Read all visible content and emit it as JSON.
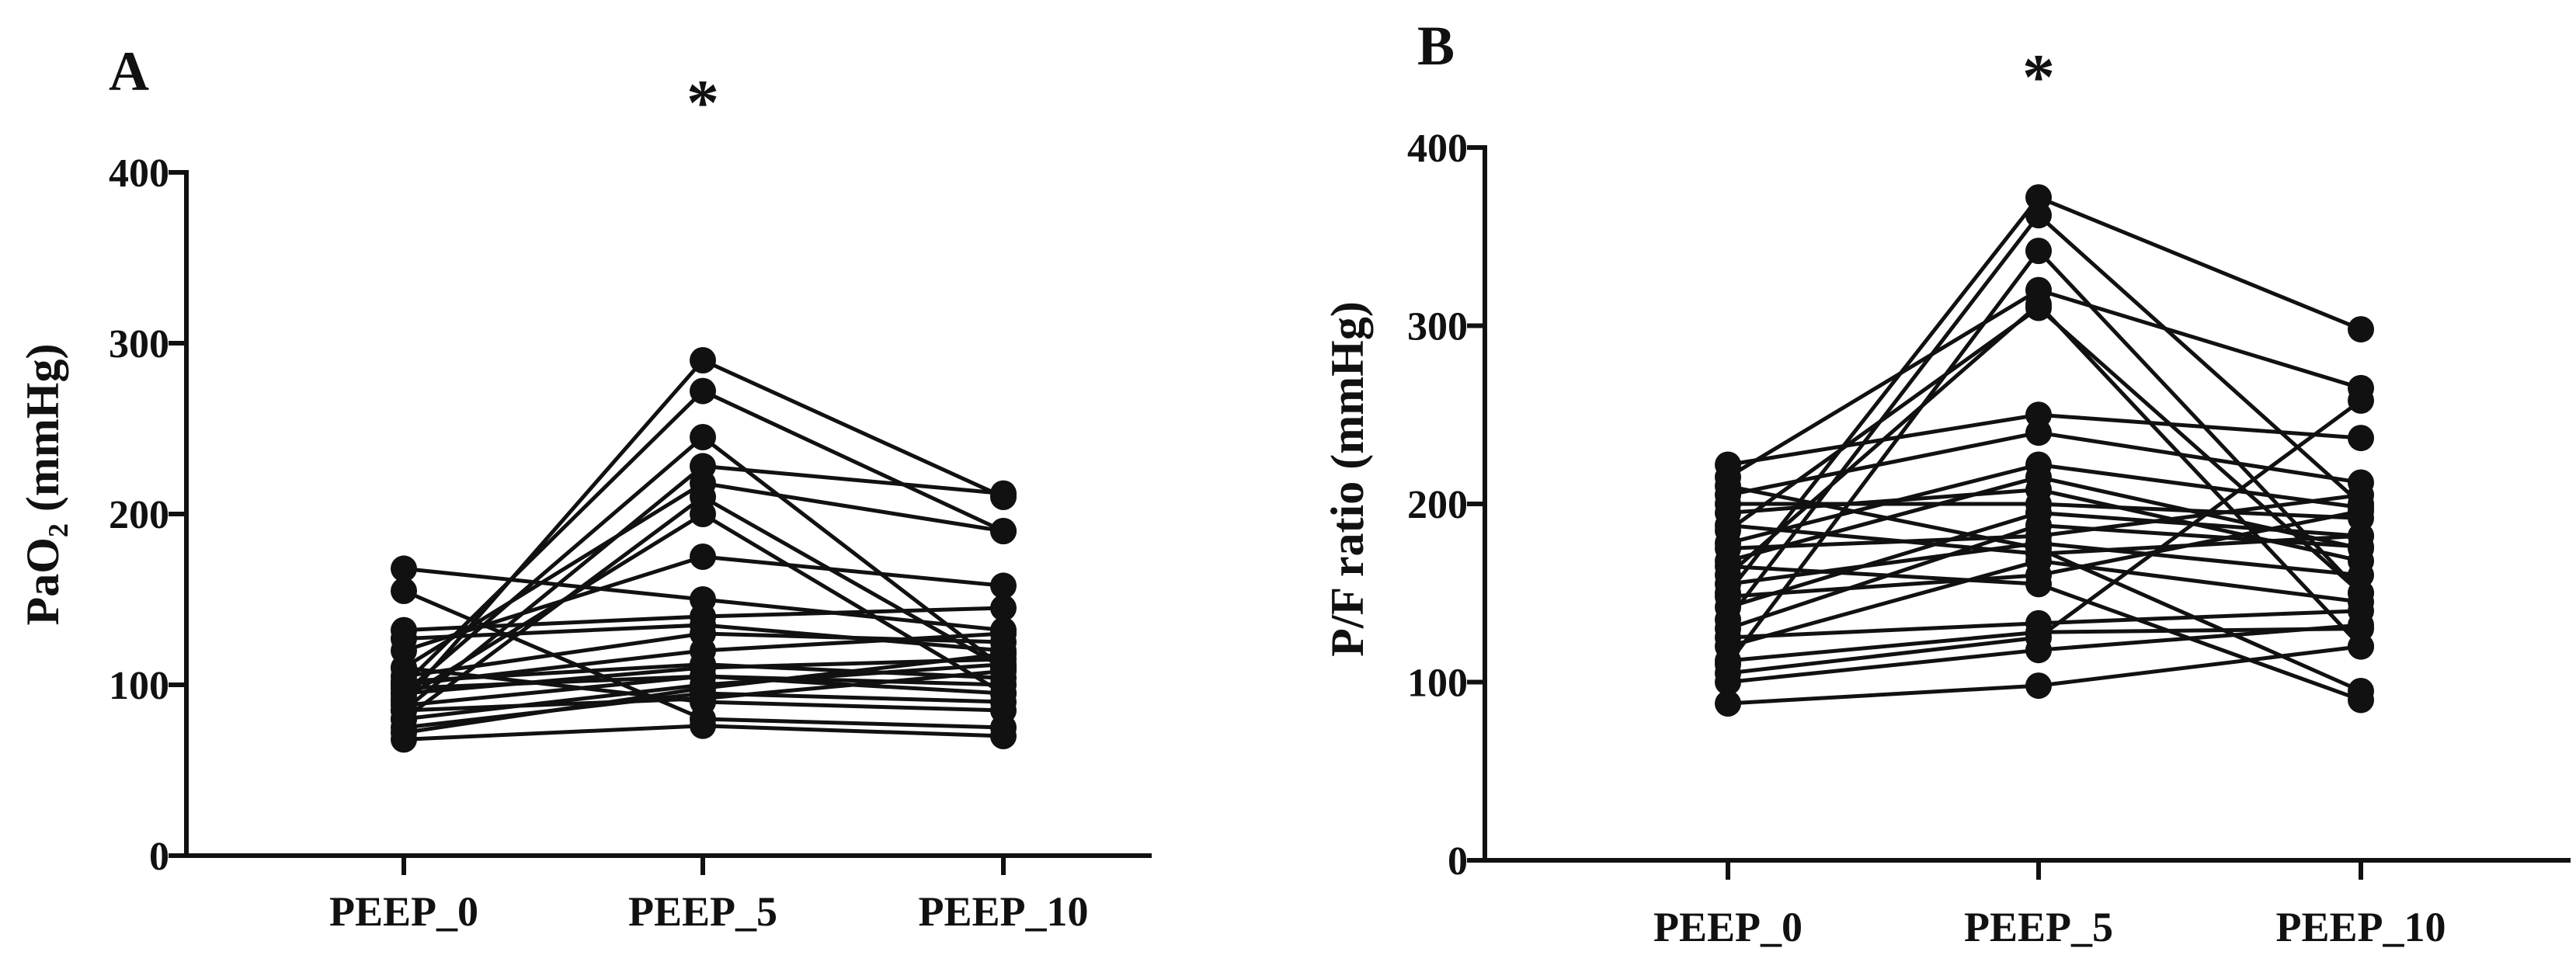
{
  "chart_data": [
    {
      "type": "line",
      "panel_label": "A",
      "significance": "*",
      "categories": [
        "PEEP_0",
        "PEEP_5",
        "PEEP_10"
      ],
      "ylabel": "PaO₂ (mmHg)",
      "ylim": [
        0,
        400
      ],
      "yticks": [
        "0",
        "100",
        "200",
        "300",
        "400"
      ],
      "grid": false,
      "series": [
        {
          "name": "1",
          "values": [
            90,
            290,
            210
          ]
        },
        {
          "name": "2",
          "values": [
            100,
            272,
            190
          ]
        },
        {
          "name": "3",
          "values": [
            95,
            245,
            110
          ]
        },
        {
          "name": "4",
          "values": [
            85,
            228,
            212
          ]
        },
        {
          "name": "5",
          "values": [
            110,
            218,
            190
          ]
        },
        {
          "name": "6",
          "values": [
            80,
            210,
            110
          ]
        },
        {
          "name": "7",
          "values": [
            92,
            200,
            95
          ]
        },
        {
          "name": "8",
          "values": [
            120,
            175,
            158
          ]
        },
        {
          "name": "9",
          "values": [
            168,
            150,
            132
          ]
        },
        {
          "name": "10",
          "values": [
            155,
            80,
            75
          ]
        },
        {
          "name": "11",
          "values": [
            132,
            140,
            145
          ]
        },
        {
          "name": "12",
          "values": [
            127,
            135,
            120
          ]
        },
        {
          "name": "13",
          "values": [
            105,
            130,
            125
          ]
        },
        {
          "name": "14",
          "values": [
            100,
            120,
            130
          ]
        },
        {
          "name": "15",
          "values": [
            95,
            110,
            115
          ]
        },
        {
          "name": "16",
          "values": [
            88,
            105,
            100
          ]
        },
        {
          "name": "17",
          "values": [
            80,
            100,
            112
          ]
        },
        {
          "name": "18",
          "values": [
            75,
            95,
            90
          ]
        },
        {
          "name": "19",
          "values": [
            68,
            76,
            70
          ]
        },
        {
          "name": "20",
          "values": [
            110,
            90,
            85
          ]
        },
        {
          "name": "21",
          "values": [
            98,
            105,
            95
          ]
        },
        {
          "name": "22",
          "values": [
            85,
            92,
            108
          ]
        },
        {
          "name": "23",
          "values": [
            72,
            98,
            118
          ]
        },
        {
          "name": "24",
          "values": [
            102,
            112,
            104
          ]
        }
      ]
    },
    {
      "type": "line",
      "panel_label": "B",
      "significance": "*",
      "categories": [
        "PEEP_0",
        "PEEP_5",
        "PEEP_10"
      ],
      "ylabel": "P/F ratio (mmHg)",
      "ylim": [
        0,
        400
      ],
      "yticks": [
        "0",
        "100",
        "200",
        "300",
        "400"
      ],
      "grid": false,
      "series": [
        {
          "name": "1",
          "values": [
            150,
            372,
            298
          ]
        },
        {
          "name": "2",
          "values": [
            135,
            362,
            200
          ]
        },
        {
          "name": "3",
          "values": [
            110,
            342,
            150
          ]
        },
        {
          "name": "4",
          "values": [
            215,
            320,
            265
          ]
        },
        {
          "name": "5",
          "values": [
            185,
            310,
            150
          ]
        },
        {
          "name": "6",
          "values": [
            160,
            312,
            120
          ]
        },
        {
          "name": "7",
          "values": [
            222,
            250,
            237
          ]
        },
        {
          "name": "8",
          "values": [
            205,
            240,
            212
          ]
        },
        {
          "name": "9",
          "values": [
            178,
            222,
            198
          ]
        },
        {
          "name": "10",
          "values": [
            168,
            215,
            175
          ]
        },
        {
          "name": "11",
          "values": [
            195,
            208,
            168
          ]
        },
        {
          "name": "12",
          "values": [
            200,
            200,
            192
          ]
        },
        {
          "name": "13",
          "values": [
            142,
            195,
            182
          ]
        },
        {
          "name": "14",
          "values": [
            130,
            188,
            176
          ]
        },
        {
          "name": "15",
          "values": [
            175,
            182,
            205
          ]
        },
        {
          "name": "16",
          "values": [
            155,
            178,
            160
          ]
        },
        {
          "name": "17",
          "values": [
            188,
            172,
            182
          ]
        },
        {
          "name": "18",
          "values": [
            120,
            168,
            145
          ]
        },
        {
          "name": "19",
          "values": [
            148,
            160,
            196
          ]
        },
        {
          "name": "20",
          "values": [
            125,
            133,
            140
          ]
        },
        {
          "name": "21",
          "values": [
            112,
            128,
            130
          ]
        },
        {
          "name": "22",
          "values": [
            100,
            118,
            132
          ]
        },
        {
          "name": "23",
          "values": [
            88,
            98,
            120
          ]
        },
        {
          "name": "24",
          "values": [
            210,
            175,
            95
          ]
        },
        {
          "name": "25",
          "values": [
            165,
            155,
            90
          ]
        },
        {
          "name": "26",
          "values": [
            105,
            125,
            258
          ]
        }
      ]
    }
  ]
}
